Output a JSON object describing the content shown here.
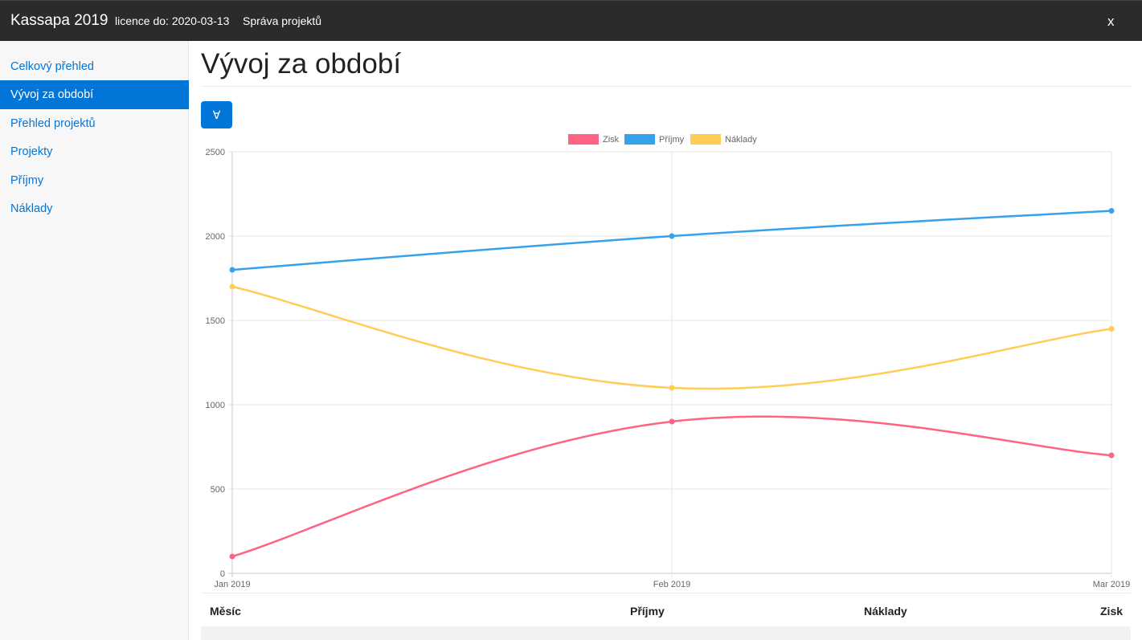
{
  "navbar": {
    "brand": "Kassapa 2019",
    "licence": "licence do: 2020-03-13",
    "link": "Správa projektů",
    "close": "x"
  },
  "sidebar": {
    "items": [
      {
        "label": "Celkový přehled"
      },
      {
        "label": "Vývoj za období",
        "active": true
      },
      {
        "label": "Přehled projektů"
      },
      {
        "label": "Projekty"
      },
      {
        "label": "Příjmy"
      },
      {
        "label": "Náklady"
      }
    ]
  },
  "main": {
    "title": "Vývoj za období",
    "toggle_label": "∀"
  },
  "table": {
    "headers": [
      "Měsíc",
      "Příjmy",
      "Náklady",
      "Zisk"
    ]
  },
  "colors": {
    "accent": "#0275d8",
    "navbar": "#292b2c",
    "zisk": "#ff6384",
    "prijmy": "#36a2eb",
    "naklady": "#ffcd56"
  },
  "chart_data": {
    "type": "line",
    "categories": [
      "Jan 2019",
      "Feb 2019",
      "Mar 2019"
    ],
    "series": [
      {
        "name": "Zisk",
        "values": [
          100,
          900,
          700
        ]
      },
      {
        "name": "Příjmy",
        "values": [
          1800,
          2000,
          2150
        ]
      },
      {
        "name": "Náklady",
        "values": [
          1700,
          1100,
          1450
        ]
      }
    ],
    "ylim": [
      0,
      2500
    ],
    "yticks": [
      0,
      500,
      1000,
      1500,
      2000,
      2500
    ],
    "legend": "top",
    "grid": true
  }
}
